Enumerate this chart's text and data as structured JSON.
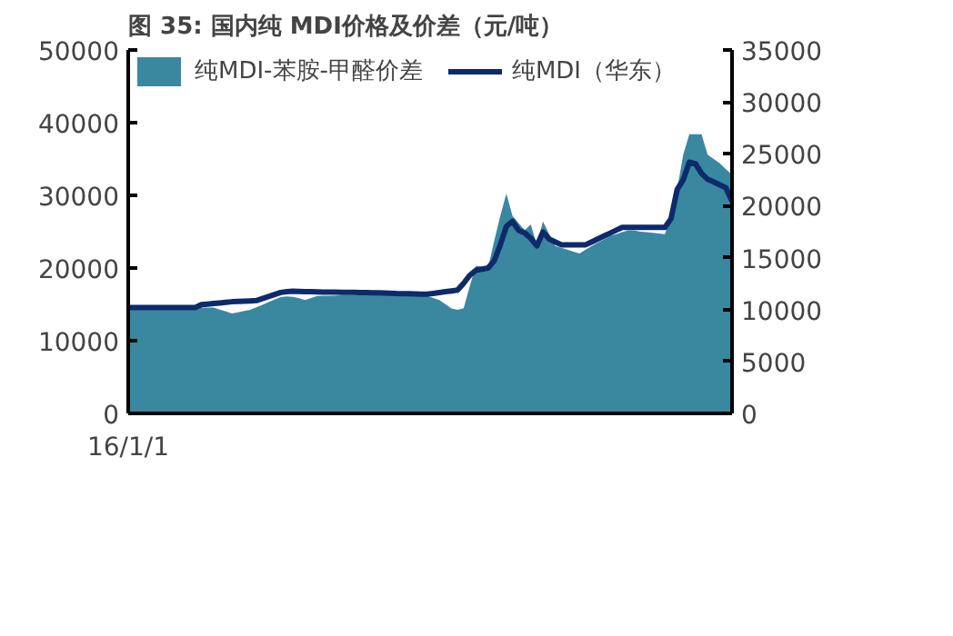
{
  "chart_data": {
    "type": "line",
    "title": "图 35:   国内纯 MDI价格及价差（元/吨）",
    "categories": [
      "16/1/1",
      null,
      null,
      null,
      null,
      null,
      null,
      null,
      null,
      null,
      null,
      null,
      null,
      null,
      null,
      null,
      null,
      null,
      null,
      null,
      null,
      null,
      null,
      null,
      null,
      null,
      null,
      null,
      null,
      null,
      null,
      null,
      null,
      null,
      null,
      null,
      null,
      null,
      null,
      null,
      null,
      null,
      null,
      null,
      null,
      null,
      null,
      null,
      null,
      null,
      null,
      null,
      null,
      null,
      null,
      null,
      null,
      null,
      null,
      null,
      null,
      null,
      null,
      null,
      null,
      null,
      null,
      null,
      null,
      null,
      null,
      null,
      null,
      null,
      null,
      null,
      null,
      null,
      null,
      null,
      null,
      null,
      null,
      null,
      null,
      null,
      null,
      null,
      null,
      null,
      null,
      null,
      null,
      null,
      null,
      null,
      null,
      null,
      null,
      null
    ],
    "ylim": [
      0,
      50000
    ],
    "yticks": [
      0,
      10000,
      20000,
      30000,
      40000,
      50000
    ],
    "y2lim": [
      0,
      35000
    ],
    "y2ticks": [
      0,
      5000,
      10000,
      15000,
      20000,
      25000,
      30000,
      35000
    ],
    "grid": false,
    "legend": "top left",
    "series": [
      {
        "name": "纯MDI-苯胺-甲醛价差",
        "type": "area",
        "axis": "y2",
        "color": "#3a87a0",
        "values": [
          10190,
          10190,
          10190,
          10190,
          10190,
          10190,
          10190,
          10190,
          10190,
          10190,
          10190,
          10190,
          10190,
          10190,
          10190,
          10000,
          9820,
          9630,
          9740,
          9860,
          9970,
          10220,
          10460,
          10710,
          10950,
          11200,
          11270,
          11230,
          11080,
          10920,
          11120,
          11310,
          11330,
          11340,
          11360,
          11380,
          11390,
          11400,
          11420,
          11410,
          11400,
          11390,
          11380,
          11370,
          11360,
          11350,
          11340,
          11330,
          11320,
          11310,
          11120,
          10920,
          10520,
          10110,
          9980,
          10120,
          12240,
          14220,
          14110,
          14000,
          16610,
          19000,
          21170,
          19040,
          18340,
          17640,
          18200,
          16240,
          18480,
          17300,
          16130,
          15950,
          15770,
          15580,
          15400,
          15770,
          16120,
          16440,
          16760,
          17080,
          17270,
          17450,
          17640,
          17610,
          17510,
          17450,
          17380,
          17320,
          17250,
          19190,
          21560,
          24920,
          26880,
          26880,
          26880,
          24920,
          24500,
          24080,
          23520,
          22960
        ]
      },
      {
        "name": "纯MDI（华东）",
        "color": "#0d2a6b",
        "values": [
          14560,
          14560,
          14560,
          14560,
          14560,
          14560,
          14560,
          14560,
          14560,
          14560,
          14560,
          14560,
          14960,
          15040,
          15120,
          15200,
          15280,
          15360,
          15400,
          15440,
          15480,
          15520,
          15800,
          16080,
          16360,
          16640,
          16750,
          16800,
          16780,
          16760,
          16740,
          16720,
          16700,
          16690,
          16680,
          16670,
          16660,
          16650,
          16640,
          16620,
          16600,
          16580,
          16560,
          16540,
          16500,
          16480,
          16460,
          16440,
          16420,
          16400,
          16510,
          16620,
          16740,
          16850,
          16960,
          17900,
          19000,
          19680,
          19840,
          20000,
          21000,
          23170,
          25720,
          26430,
          25200,
          24830,
          24110,
          23040,
          24960,
          24000,
          23600,
          23200,
          23200,
          23200,
          23200,
          23200,
          23600,
          24000,
          24400,
          24800,
          25200,
          25600,
          25600,
          25600,
          25600,
          25600,
          25600,
          25600,
          25600,
          26800,
          30800,
          32130,
          34560,
          34350,
          33010,
          32210,
          31840,
          31440,
          31040,
          29200
        ]
      }
    ]
  }
}
